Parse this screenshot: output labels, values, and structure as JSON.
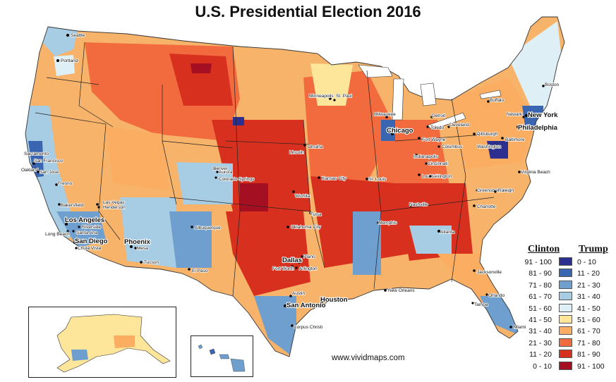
{
  "title": "U.S. Presidential Election 2016",
  "credit": "www.vividmaps.com",
  "legend": {
    "left_header": "Clinton",
    "right_header": "Trump",
    "rows": [
      {
        "clinton": "91 - 100",
        "trump": "0 - 10",
        "color": "#2c2f8f"
      },
      {
        "clinton": "81 - 90",
        "trump": "11 - 20",
        "color": "#3a66b1"
      },
      {
        "clinton": "71 - 80",
        "trump": "21 - 30",
        "color": "#6e9fcf"
      },
      {
        "clinton": "61 - 70",
        "trump": "31 - 40",
        "color": "#a6cde4"
      },
      {
        "clinton": "51 - 60",
        "trump": "41 - 50",
        "color": "#def0f6"
      },
      {
        "clinton": "41 - 50",
        "trump": "51 - 60",
        "color": "#fde59a"
      },
      {
        "clinton": "31 - 40",
        "trump": "61 - 70",
        "color": "#fbae62"
      },
      {
        "clinton": "21 - 30",
        "trump": "71 - 80",
        "color": "#f26b3f"
      },
      {
        "clinton": "11 - 20",
        "trump": "81 - 90",
        "color": "#d8301f"
      },
      {
        "clinton": "0 - 10",
        "trump": "91 - 100",
        "color": "#a50f22"
      }
    ]
  },
  "cities": [
    {
      "name": "Seattle"
    },
    {
      "name": "Portland"
    },
    {
      "name": "Sacramento"
    },
    {
      "name": "San Francisco"
    },
    {
      "name": "Oakland"
    },
    {
      "name": "San Jose"
    },
    {
      "name": "Fresno"
    },
    {
      "name": "Bakersfield"
    },
    {
      "name": "Las Vegas"
    },
    {
      "name": "Henderson"
    },
    {
      "name": "Los Angeles"
    },
    {
      "name": "Riverside"
    },
    {
      "name": "Santa Ana"
    },
    {
      "name": "Long Beach"
    },
    {
      "name": "San Diego"
    },
    {
      "name": "Chula Vista"
    },
    {
      "name": "Phoenix"
    },
    {
      "name": "Mesa"
    },
    {
      "name": "Tucson"
    },
    {
      "name": "Albuquerque"
    },
    {
      "name": "El Paso"
    },
    {
      "name": "Denver"
    },
    {
      "name": "Aurora"
    },
    {
      "name": "Colorado Springs"
    },
    {
      "name": "Omaha"
    },
    {
      "name": "Lincoln"
    },
    {
      "name": "Kansas City"
    },
    {
      "name": "Wichita"
    },
    {
      "name": "Tulsa"
    },
    {
      "name": "Oklahoma City"
    },
    {
      "name": "Dallas"
    },
    {
      "name": "Fort Worth"
    },
    {
      "name": "Arlington"
    },
    {
      "name": "Plano"
    },
    {
      "name": "Austin"
    },
    {
      "name": "San Antonio"
    },
    {
      "name": "Houston"
    },
    {
      "name": "Corpus Christi"
    },
    {
      "name": "Minneapolis"
    },
    {
      "name": "St. Paul"
    },
    {
      "name": "Milwaukee"
    },
    {
      "name": "Chicago"
    },
    {
      "name": "St. Louis"
    },
    {
      "name": "Memphis"
    },
    {
      "name": "Nashville"
    },
    {
      "name": "Louisville"
    },
    {
      "name": "Indianapolis"
    },
    {
      "name": "Fort Wayne"
    },
    {
      "name": "Detroit"
    },
    {
      "name": "Toledo"
    },
    {
      "name": "Cleveland"
    },
    {
      "name": "Columbus"
    },
    {
      "name": "Cincinnati"
    },
    {
      "name": "Lexington"
    },
    {
      "name": "Pittsburgh"
    },
    {
      "name": "Buffalo"
    },
    {
      "name": "Boston"
    },
    {
      "name": "New York"
    },
    {
      "name": "Newark"
    },
    {
      "name": "Philadelphia"
    },
    {
      "name": "Baltimore"
    },
    {
      "name": "Washington"
    },
    {
      "name": "Virginia Beach"
    },
    {
      "name": "Greensboro"
    },
    {
      "name": "Raleigh"
    },
    {
      "name": "Charlotte"
    },
    {
      "name": "Atlanta"
    },
    {
      "name": "Jacksonville"
    },
    {
      "name": "Orlando"
    },
    {
      "name": "Tampa"
    },
    {
      "name": "Miami"
    },
    {
      "name": "New Orleans"
    }
  ]
}
